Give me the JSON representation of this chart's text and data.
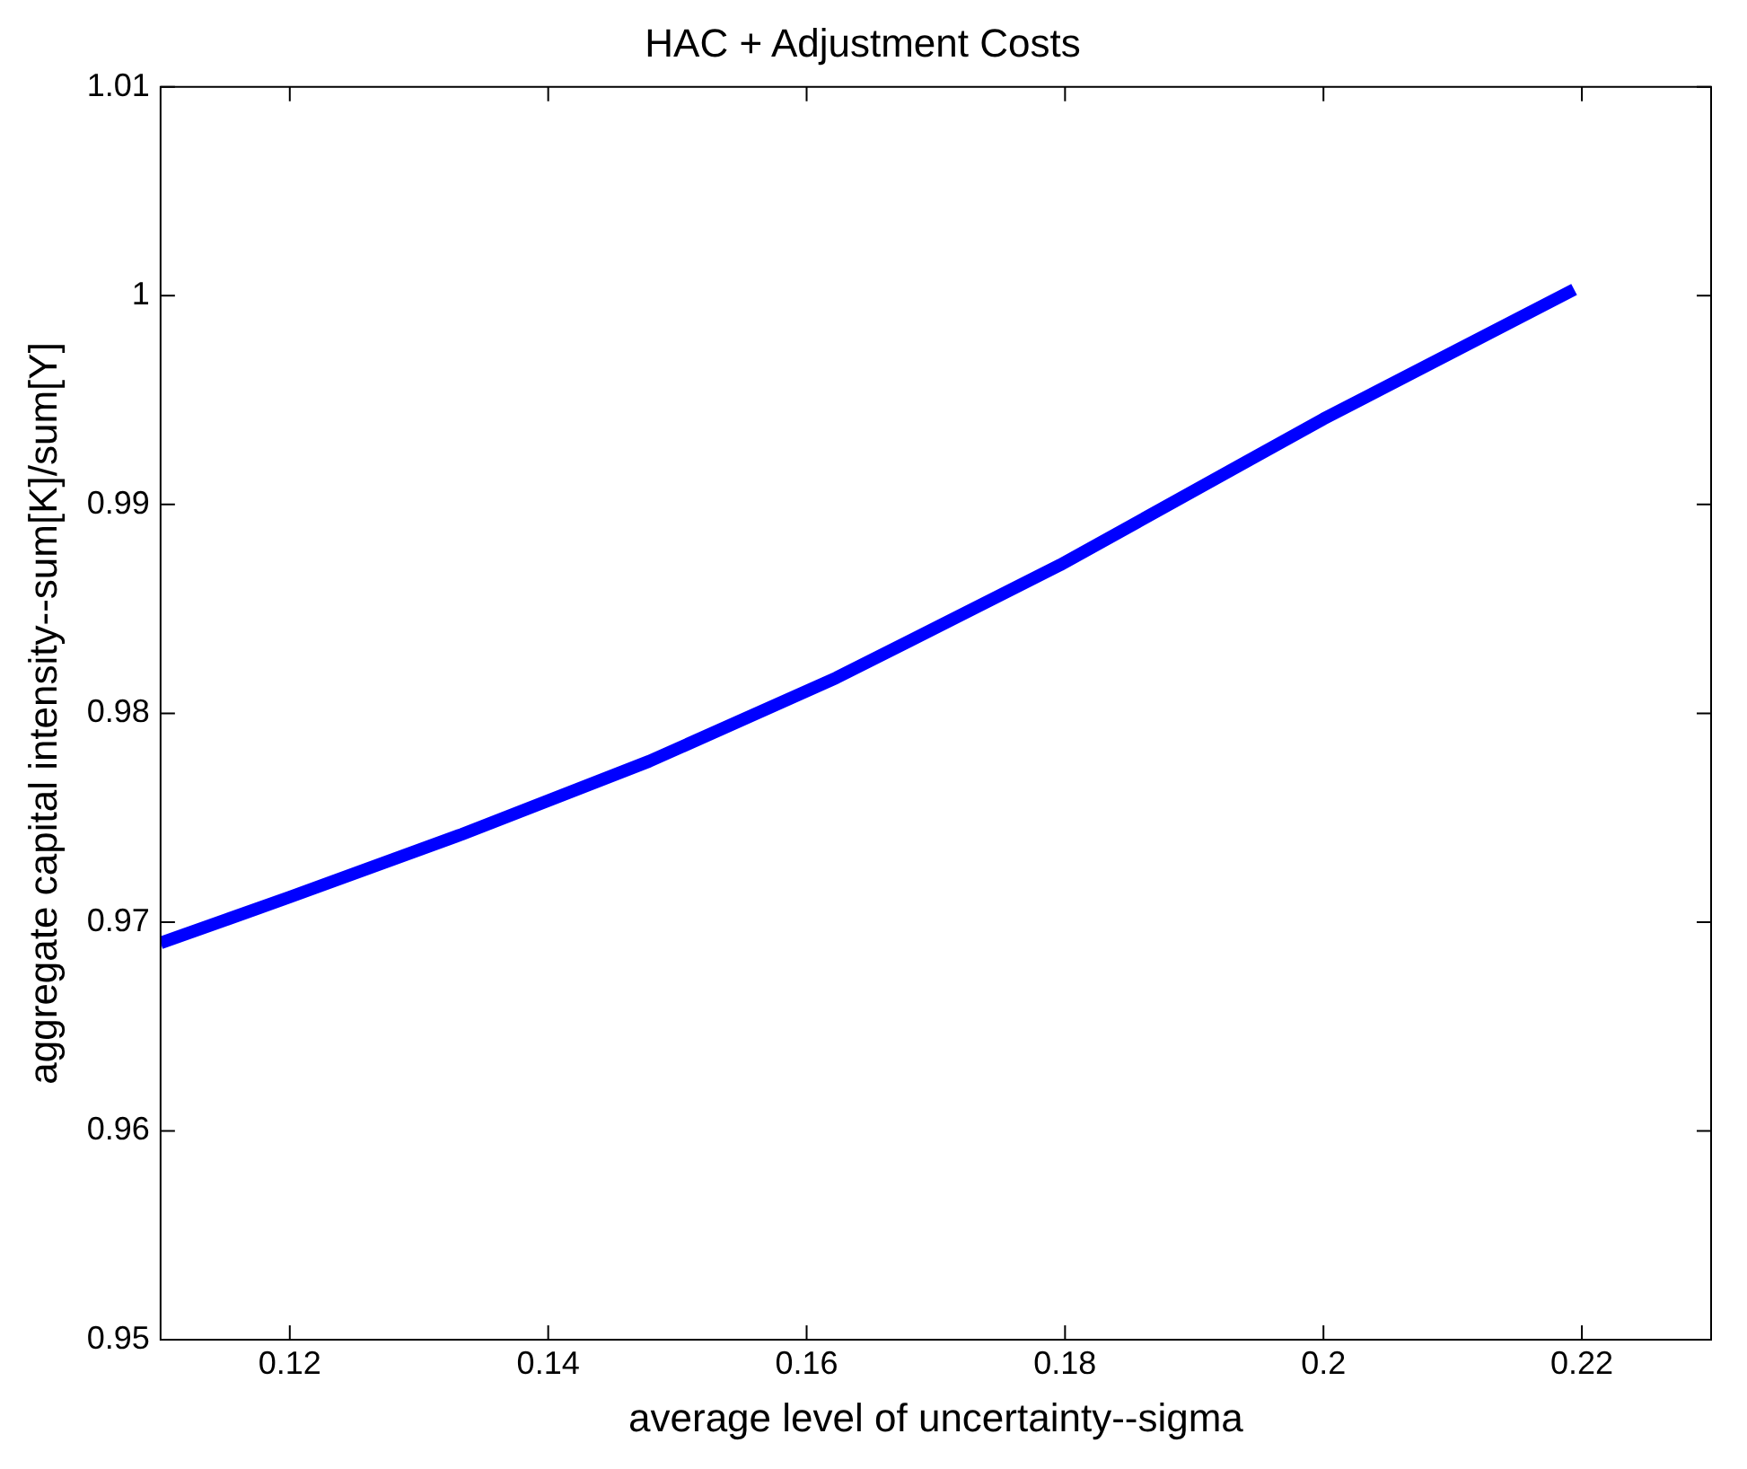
{
  "chart_data": {
    "type": "line",
    "title": "HAC + Adjustment Costs",
    "xlabel": "average level of uncertainty--sigma",
    "ylabel": "aggregate capital intensity--sum[K]/sum[Y]",
    "x": [
      0.11,
      0.12,
      0.1333,
      0.1478,
      0.1623,
      0.1796,
      0.2,
      0.2194
    ],
    "series": [
      {
        "color": "#0000ff",
        "values": [
          0.969,
          0.9712,
          0.9742,
          0.9777,
          0.9817,
          0.9871,
          0.9941,
          1.0003
        ]
      }
    ],
    "xlim": [
      0.11,
      0.23
    ],
    "xticks": [
      0.12,
      0.14,
      0.16,
      0.18,
      0.2,
      0.22
    ],
    "ylim": [
      0.95,
      1.01
    ],
    "yticks": [
      0.95,
      0.96,
      0.97,
      0.98,
      0.99,
      1,
      1.01
    ],
    "grid": false,
    "legend": false,
    "marker": "none",
    "line_style": "solid"
  }
}
